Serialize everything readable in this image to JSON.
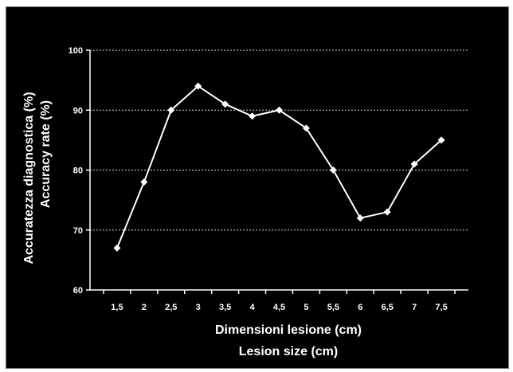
{
  "chart_data": {
    "type": "line",
    "x": [
      "1,5",
      "2",
      "2,5",
      "3",
      "3,5",
      "4",
      "4,5",
      "5",
      "5,5",
      "6",
      "6,5",
      "7",
      "7,5"
    ],
    "series": [
      {
        "values": [
          67,
          78,
          90,
          94,
          91,
          89,
          90,
          87,
          80,
          72,
          73,
          81,
          85
        ]
      }
    ],
    "xlabel": [
      "Dimensioni lesione (cm)",
      "Lesion size (cm)"
    ],
    "ylabel": [
      "Accuratezza diagnostica (%)",
      "Accuracy rate (%)"
    ],
    "ylim": [
      60,
      100
    ],
    "yticks": [
      "60",
      "70",
      "80",
      "90",
      "100"
    ],
    "grid": "horizontal dotted",
    "legend": "none",
    "colors": {
      "background": "#000000",
      "axis": "#ffffff",
      "line": "#ffffff",
      "marker": "#ffffff",
      "grid": "#d8d8d8",
      "text": "#ffffff"
    }
  }
}
